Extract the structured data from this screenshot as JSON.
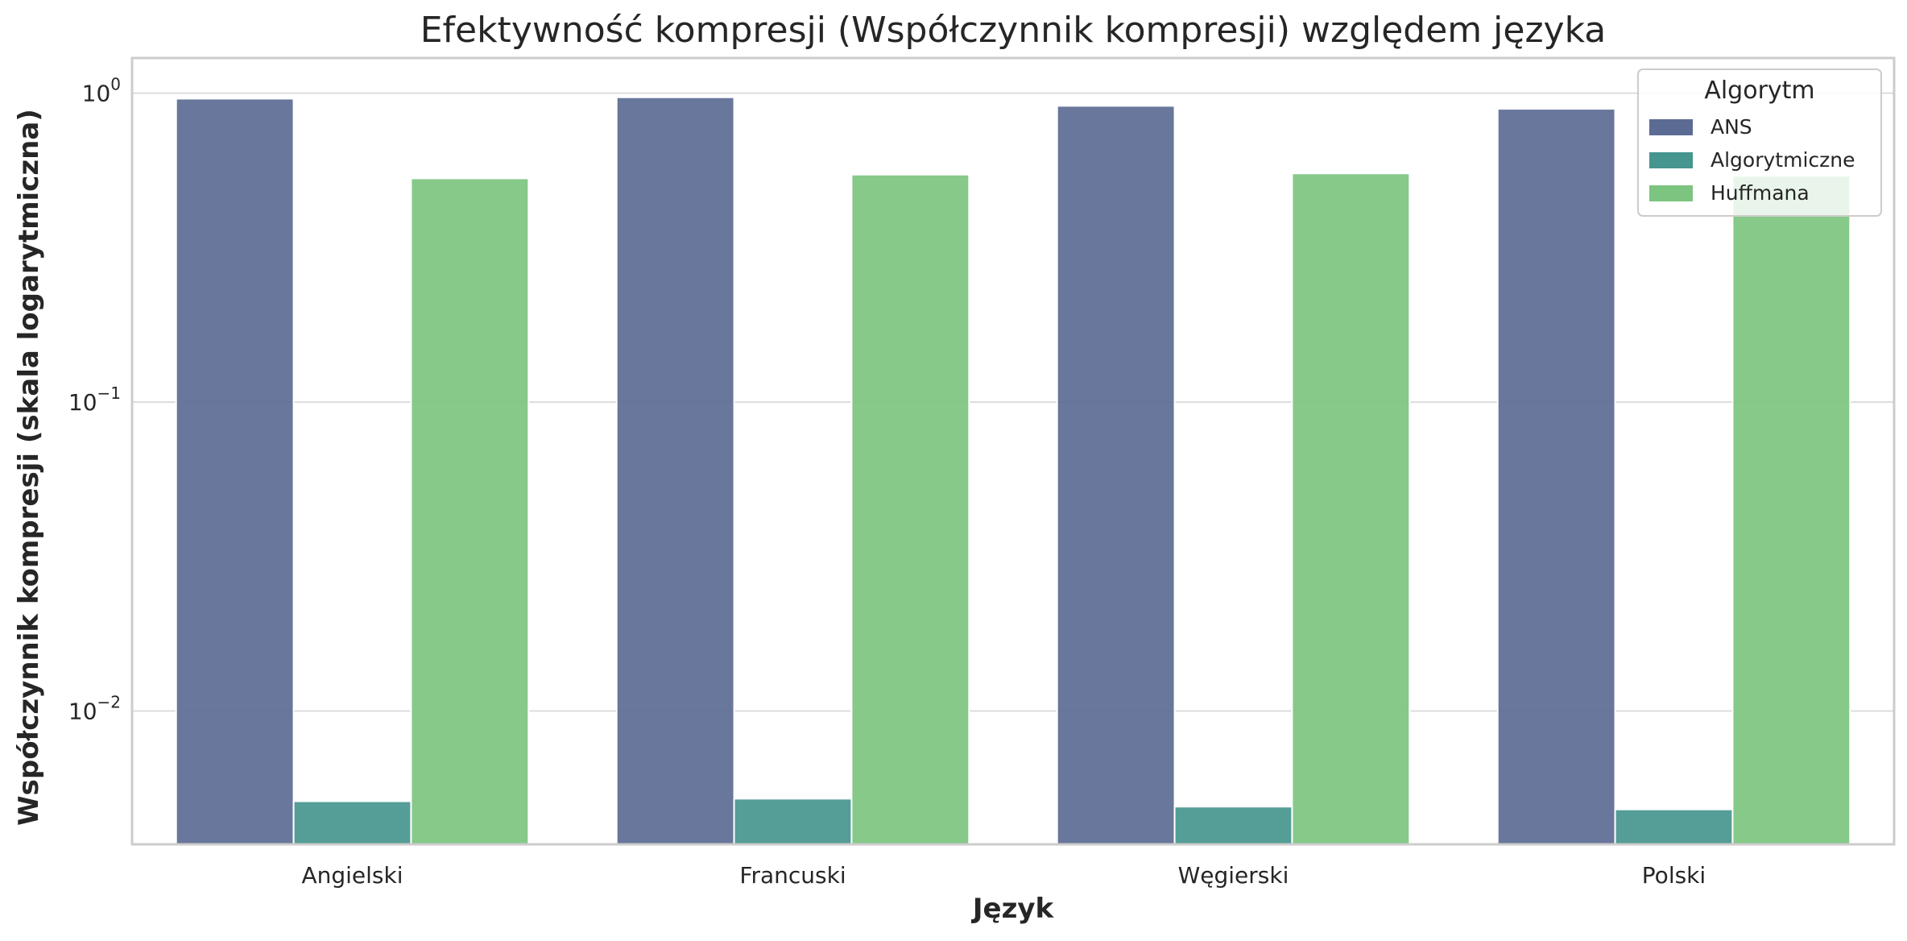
{
  "chart_data": {
    "type": "bar",
    "title": "Efektywność kompresji (Współczynnik kompresji) względem języka",
    "xlabel": "Język",
    "ylabel": "Współczynnik kompresji (skala logarytmiczna)",
    "yscale": "log",
    "ylim": [
      0.0037,
      1.3
    ],
    "yticks": [
      {
        "value": 1,
        "base": "10",
        "exp": "0"
      },
      {
        "value": 0.1,
        "base": "10",
        "exp": "−1"
      },
      {
        "value": 0.01,
        "base": "10",
        "exp": "−2"
      }
    ],
    "grid": true,
    "categories": [
      "Angielski",
      "Francuski",
      "Węgierski",
      "Polski"
    ],
    "legend": {
      "title": "Algorytm",
      "position": "top-right"
    },
    "series": [
      {
        "name": "ANS",
        "color": "#5b6b93",
        "values": [
          0.96,
          0.97,
          0.91,
          0.89
        ]
      },
      {
        "name": "Algorytmiczne",
        "color": "#46958e",
        "values": [
          0.0051,
          0.0052,
          0.0049,
          0.0048
        ]
      },
      {
        "name": "Huffmana",
        "color": "#7cc47f",
        "values": [
          0.53,
          0.545,
          0.55,
          0.54
        ]
      }
    ]
  }
}
